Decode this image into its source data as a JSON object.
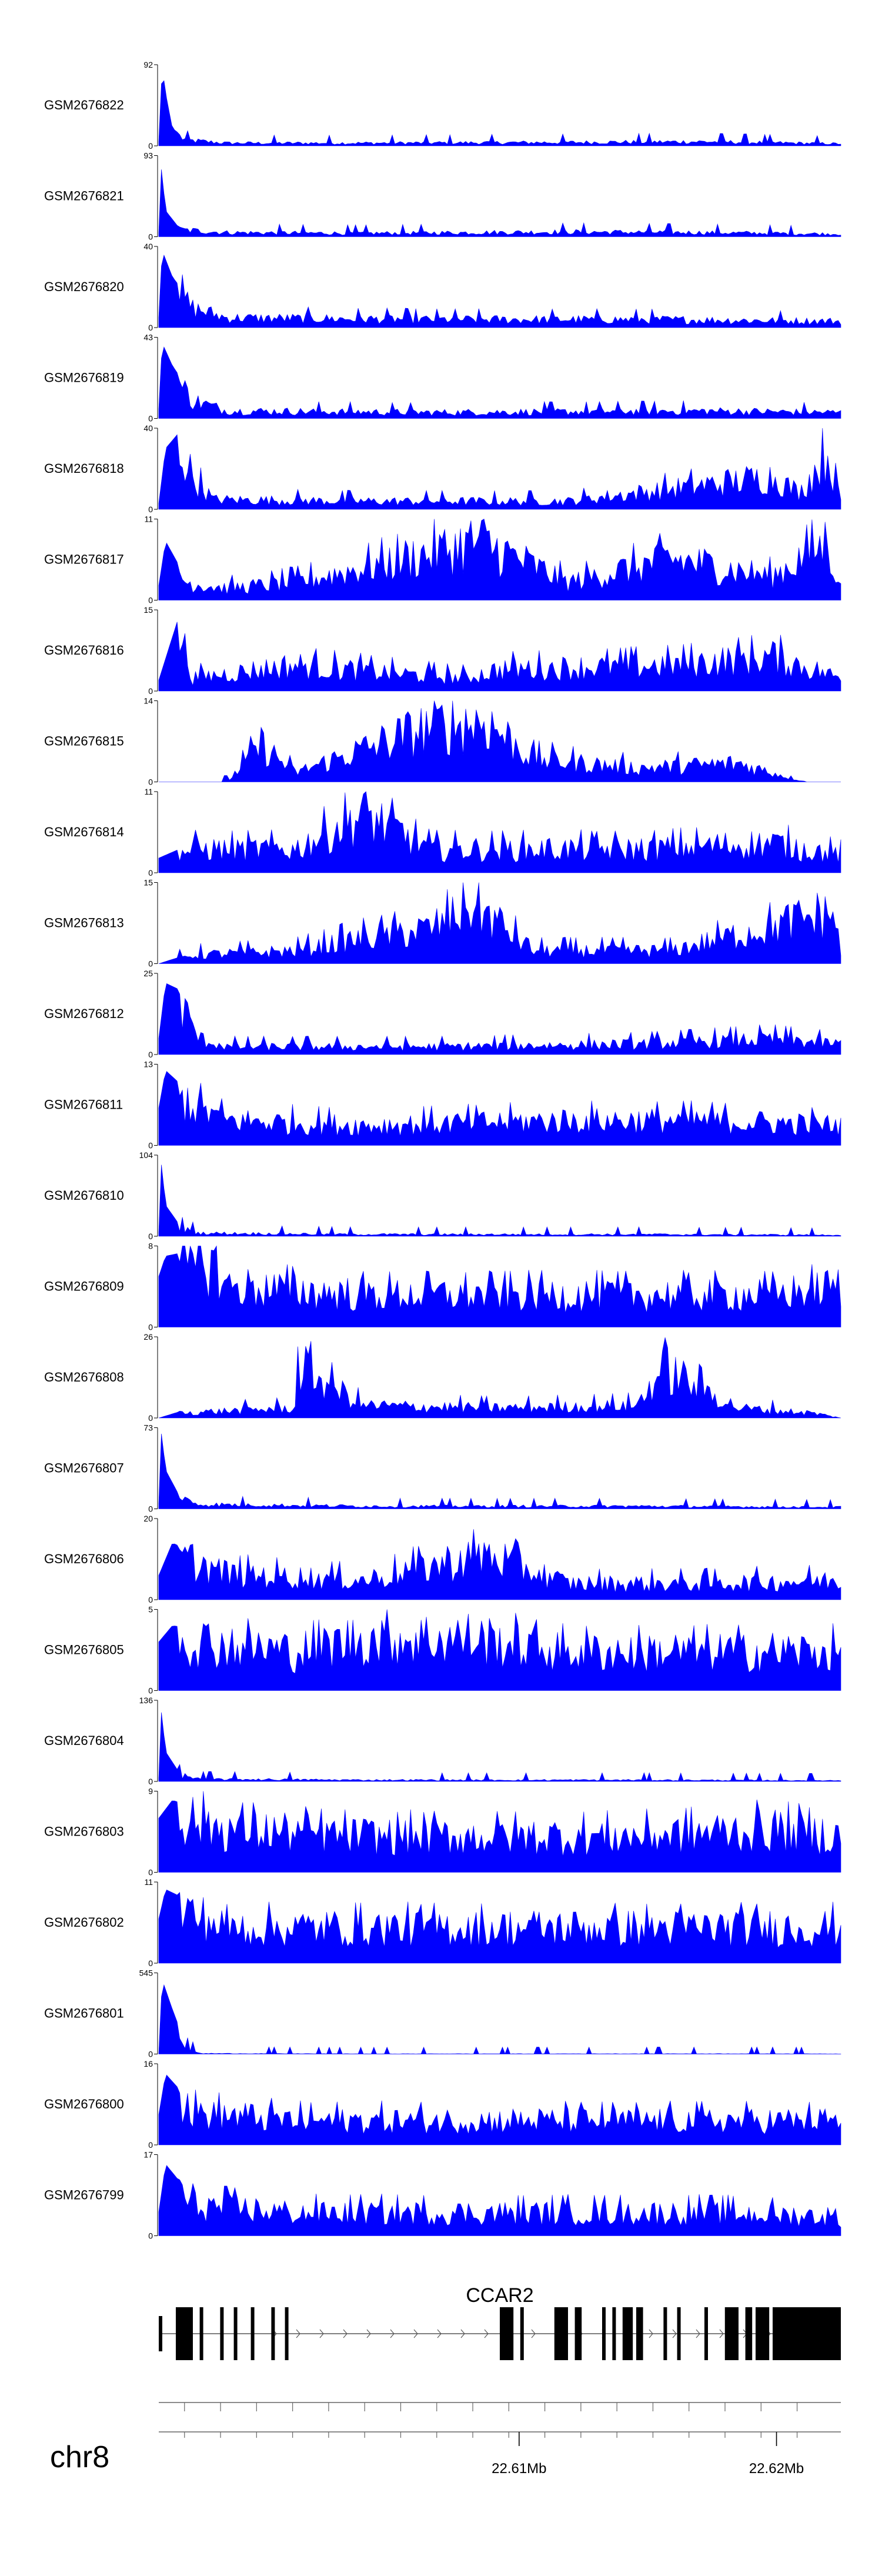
{
  "chart_data": {
    "type": "area",
    "description_free": true,
    "fill_color": "#0000ff",
    "chromosome": "chr8",
    "gene": "CCAR2",
    "x_range": [
      22.596,
      22.6225
    ],
    "x_unit": "Mb",
    "x_ticks": [
      {
        "value": 22.61,
        "label": "22.61Mb"
      },
      {
        "value": 22.62,
        "label": "22.62Mb"
      }
    ],
    "tracks": [
      {
        "name": "GSM2676822",
        "ymax_label": "92",
        "ymax": 92,
        "shape": [
          [
            0,
            5
          ],
          [
            0.005,
            90
          ],
          [
            0.01,
            60
          ],
          [
            0.02,
            20
          ],
          [
            0.04,
            8
          ],
          [
            0.1,
            4
          ],
          [
            0.3,
            4
          ],
          [
            0.6,
            5
          ],
          [
            0.8,
            6
          ],
          [
            1,
            3
          ]
        ]
      },
      {
        "name": "GSM2676821",
        "ymax_label": "93",
        "ymax": 93,
        "shape": [
          [
            0,
            5
          ],
          [
            0.004,
            80
          ],
          [
            0.01,
            30
          ],
          [
            0.03,
            10
          ],
          [
            0.1,
            6
          ],
          [
            0.3,
            5
          ],
          [
            0.6,
            7
          ],
          [
            0.8,
            6
          ],
          [
            1,
            4
          ]
        ]
      },
      {
        "name": "GSM2676820",
        "ymax_label": "40",
        "ymax": 40,
        "shape": [
          [
            0,
            5
          ],
          [
            0.005,
            38
          ],
          [
            0.02,
            25
          ],
          [
            0.05,
            12
          ],
          [
            0.1,
            6
          ],
          [
            0.4,
            5
          ],
          [
            0.7,
            5
          ],
          [
            1,
            4
          ]
        ]
      },
      {
        "name": "GSM2676819",
        "ymax_label": "43",
        "ymax": 43,
        "shape": [
          [
            0,
            5
          ],
          [
            0.005,
            40
          ],
          [
            0.02,
            28
          ],
          [
            0.05,
            12
          ],
          [
            0.1,
            5
          ],
          [
            0.4,
            4
          ],
          [
            0.8,
            5
          ],
          [
            1,
            4
          ]
        ]
      },
      {
        "name": "GSM2676818",
        "ymax_label": "40",
        "ymax": 40,
        "shape": [
          [
            0,
            3
          ],
          [
            0.01,
            30
          ],
          [
            0.03,
            38
          ],
          [
            0.05,
            20
          ],
          [
            0.08,
            6
          ],
          [
            0.3,
            5
          ],
          [
            0.6,
            5
          ],
          [
            0.9,
            20
          ],
          [
            0.94,
            10
          ],
          [
            0.98,
            35
          ],
          [
            1,
            5
          ]
        ]
      },
      {
        "name": "GSM2676817",
        "ymax_label": "11",
        "ymax": 11,
        "shape": [
          [
            0,
            2
          ],
          [
            0.01,
            8
          ],
          [
            0.04,
            3
          ],
          [
            0.1,
            2
          ],
          [
            0.2,
            3
          ],
          [
            0.4,
            8
          ],
          [
            0.47,
            10
          ],
          [
            0.6,
            3
          ],
          [
            0.75,
            7
          ],
          [
            0.9,
            4
          ],
          [
            0.98,
            10
          ],
          [
            1,
            2
          ]
        ]
      },
      {
        "name": "GSM2676816",
        "ymax_label": "15",
        "ymax": 15,
        "shape": [
          [
            0,
            2
          ],
          [
            0.03,
            14
          ],
          [
            0.05,
            3
          ],
          [
            0.2,
            6
          ],
          [
            0.35,
            4
          ],
          [
            0.45,
            3
          ],
          [
            0.5,
            5
          ],
          [
            0.75,
            6
          ],
          [
            0.9,
            8
          ],
          [
            1,
            3
          ]
        ]
      },
      {
        "name": "GSM2676815",
        "ymax_label": "14",
        "ymax": 14,
        "shape": [
          [
            0,
            0
          ],
          [
            0.1,
            0
          ],
          [
            0.15,
            8
          ],
          [
            0.2,
            2
          ],
          [
            0.4,
            12
          ],
          [
            0.48,
            13
          ],
          [
            0.55,
            5
          ],
          [
            0.7,
            3
          ],
          [
            0.85,
            4
          ],
          [
            0.95,
            0
          ],
          [
            1,
            0
          ]
        ]
      },
      {
        "name": "GSM2676814",
        "ymax_label": "11",
        "ymax": 11,
        "shape": [
          [
            0,
            2
          ],
          [
            0.05,
            4
          ],
          [
            0.2,
            4
          ],
          [
            0.3,
            10
          ],
          [
            0.4,
            4
          ],
          [
            0.5,
            4
          ],
          [
            0.7,
            4
          ],
          [
            0.9,
            5
          ],
          [
            1,
            3
          ]
        ]
      },
      {
        "name": "GSM2676813",
        "ymax_label": "15",
        "ymax": 15,
        "shape": [
          [
            0,
            0
          ],
          [
            0.05,
            2
          ],
          [
            0.2,
            3
          ],
          [
            0.3,
            6
          ],
          [
            0.4,
            8
          ],
          [
            0.46,
            14
          ],
          [
            0.55,
            3
          ],
          [
            0.75,
            3
          ],
          [
            0.99,
            12
          ],
          [
            1,
            2
          ]
        ]
      },
      {
        "name": "GSM2676812",
        "ymax_label": "25",
        "ymax": 25,
        "shape": [
          [
            0,
            5
          ],
          [
            0.01,
            22
          ],
          [
            0.03,
            20
          ],
          [
            0.06,
            6
          ],
          [
            0.1,
            3
          ],
          [
            0.4,
            3
          ],
          [
            0.7,
            4
          ],
          [
            0.9,
            6
          ],
          [
            1,
            4
          ]
        ]
      },
      {
        "name": "GSM2676811",
        "ymax_label": "13",
        "ymax": 13,
        "shape": [
          [
            0,
            6
          ],
          [
            0.01,
            12
          ],
          [
            0.05,
            8
          ],
          [
            0.1,
            5
          ],
          [
            0.3,
            4
          ],
          [
            0.6,
            5
          ],
          [
            0.8,
            5
          ],
          [
            1,
            4
          ]
        ]
      },
      {
        "name": "GSM2676810",
        "ymax_label": "104",
        "ymax": 104,
        "shape": [
          [
            0,
            5
          ],
          [
            0.004,
            95
          ],
          [
            0.01,
            40
          ],
          [
            0.03,
            15
          ],
          [
            0.06,
            5
          ],
          [
            0.3,
            3
          ],
          [
            0.7,
            3
          ],
          [
            1,
            2
          ]
        ]
      },
      {
        "name": "GSM2676809",
        "ymax_label": "8",
        "ymax": 8,
        "shape": [
          [
            0,
            5
          ],
          [
            0.01,
            7
          ],
          [
            0.08,
            8
          ],
          [
            0.1,
            5
          ],
          [
            0.3,
            4
          ],
          [
            0.5,
            4
          ],
          [
            0.7,
            4
          ],
          [
            0.9,
            4
          ],
          [
            1,
            5
          ]
        ]
      },
      {
        "name": "GSM2676808",
        "ymax_label": "26",
        "ymax": 26,
        "shape": [
          [
            0,
            0
          ],
          [
            0.03,
            2
          ],
          [
            0.2,
            4
          ],
          [
            0.2,
            22
          ],
          [
            0.3,
            5
          ],
          [
            0.5,
            4
          ],
          [
            0.7,
            5
          ],
          [
            0.74,
            20
          ],
          [
            0.85,
            4
          ],
          [
            0.96,
            2
          ],
          [
            1,
            0
          ]
        ]
      },
      {
        "name": "GSM2676807",
        "ymax_label": "73",
        "ymax": 73,
        "shape": [
          [
            0,
            5
          ],
          [
            0.004,
            70
          ],
          [
            0.01,
            35
          ],
          [
            0.03,
            12
          ],
          [
            0.06,
            5
          ],
          [
            0.3,
            3
          ],
          [
            0.7,
            3
          ],
          [
            1,
            2
          ]
        ]
      },
      {
        "name": "GSM2676806",
        "ymax_label": "20",
        "ymax": 20,
        "shape": [
          [
            0,
            6
          ],
          [
            0.02,
            14
          ],
          [
            0.1,
            8
          ],
          [
            0.3,
            6
          ],
          [
            0.48,
            14
          ],
          [
            0.6,
            5
          ],
          [
            0.8,
            5
          ],
          [
            1,
            6
          ]
        ]
      },
      {
        "name": "GSM2676805",
        "ymax_label": "5",
        "ymax": 5,
        "shape": [
          [
            0,
            3
          ],
          [
            0.02,
            4
          ],
          [
            0.2,
            3
          ],
          [
            0.3,
            4
          ],
          [
            0.46,
            4
          ],
          [
            0.6,
            3
          ],
          [
            0.8,
            3
          ],
          [
            1,
            3
          ]
        ]
      },
      {
        "name": "GSM2676804",
        "ymax_label": "136",
        "ymax": 136,
        "shape": [
          [
            0,
            6
          ],
          [
            0.004,
            120
          ],
          [
            0.01,
            50
          ],
          [
            0.03,
            15
          ],
          [
            0.06,
            5
          ],
          [
            0.3,
            3
          ],
          [
            0.7,
            3
          ],
          [
            1,
            2
          ]
        ]
      },
      {
        "name": "GSM2676803",
        "ymax_label": "9",
        "ymax": 9,
        "shape": [
          [
            0,
            6
          ],
          [
            0.02,
            8
          ],
          [
            0.1,
            6
          ],
          [
            0.3,
            5
          ],
          [
            0.5,
            5
          ],
          [
            0.7,
            5
          ],
          [
            0.9,
            6
          ],
          [
            1,
            5
          ]
        ]
      },
      {
        "name": "GSM2676802",
        "ymax_label": "11",
        "ymax": 11,
        "shape": [
          [
            0,
            6
          ],
          [
            0.01,
            10
          ],
          [
            0.1,
            6
          ],
          [
            0.3,
            6
          ],
          [
            0.5,
            6
          ],
          [
            0.7,
            6
          ],
          [
            0.9,
            6
          ],
          [
            1,
            6
          ]
        ]
      },
      {
        "name": "GSM2676801",
        "ymax_label": "545",
        "ymax": 545,
        "shape": [
          [
            0,
            4
          ],
          [
            0.005,
            500
          ],
          [
            0.02,
            300
          ],
          [
            0.04,
            60
          ],
          [
            0.06,
            5
          ],
          [
            0.3,
            2
          ],
          [
            0.9,
            3
          ],
          [
            1,
            2
          ]
        ]
      },
      {
        "name": "GSM2676800",
        "ymax_label": "16",
        "ymax": 16,
        "shape": [
          [
            0,
            6
          ],
          [
            0.01,
            14
          ],
          [
            0.05,
            8
          ],
          [
            0.2,
            6
          ],
          [
            0.5,
            6
          ],
          [
            0.8,
            6
          ],
          [
            1,
            6
          ]
        ]
      },
      {
        "name": "GSM2676799",
        "ymax_label": "17",
        "ymax": 17,
        "shape": [
          [
            0,
            5
          ],
          [
            0.01,
            15
          ],
          [
            0.05,
            8
          ],
          [
            0.2,
            6
          ],
          [
            0.5,
            6
          ],
          [
            0.8,
            6
          ],
          [
            1,
            5
          ]
        ]
      }
    ],
    "gene_model": {
      "name": "CCAR2",
      "exons": [
        [
          0.0,
          0.005,
          "utr"
        ],
        [
          0.025,
          0.05,
          "cds"
        ],
        [
          0.06,
          0.062,
          "cds"
        ],
        [
          0.09,
          0.093,
          "cds"
        ],
        [
          0.11,
          0.113,
          "cds"
        ],
        [
          0.135,
          0.14,
          "cds"
        ],
        [
          0.165,
          0.168,
          "cds"
        ],
        [
          0.185,
          0.19,
          "cds"
        ],
        [
          0.5,
          0.52,
          "cds"
        ],
        [
          0.53,
          0.535,
          "cds"
        ],
        [
          0.58,
          0.6,
          "cds"
        ],
        [
          0.61,
          0.62,
          "cds"
        ],
        [
          0.65,
          0.655,
          "cds"
        ],
        [
          0.665,
          0.67,
          "cds"
        ],
        [
          0.68,
          0.695,
          "cds"
        ],
        [
          0.7,
          0.71,
          "cds"
        ],
        [
          0.74,
          0.745,
          "cds"
        ],
        [
          0.76,
          0.765,
          "cds"
        ],
        [
          0.8,
          0.805,
          "cds"
        ],
        [
          0.83,
          0.85,
          "cds"
        ],
        [
          0.86,
          0.87,
          "cds"
        ],
        [
          0.875,
          0.895,
          "cds"
        ],
        [
          0.9,
          1.0,
          "cds"
        ]
      ]
    }
  }
}
